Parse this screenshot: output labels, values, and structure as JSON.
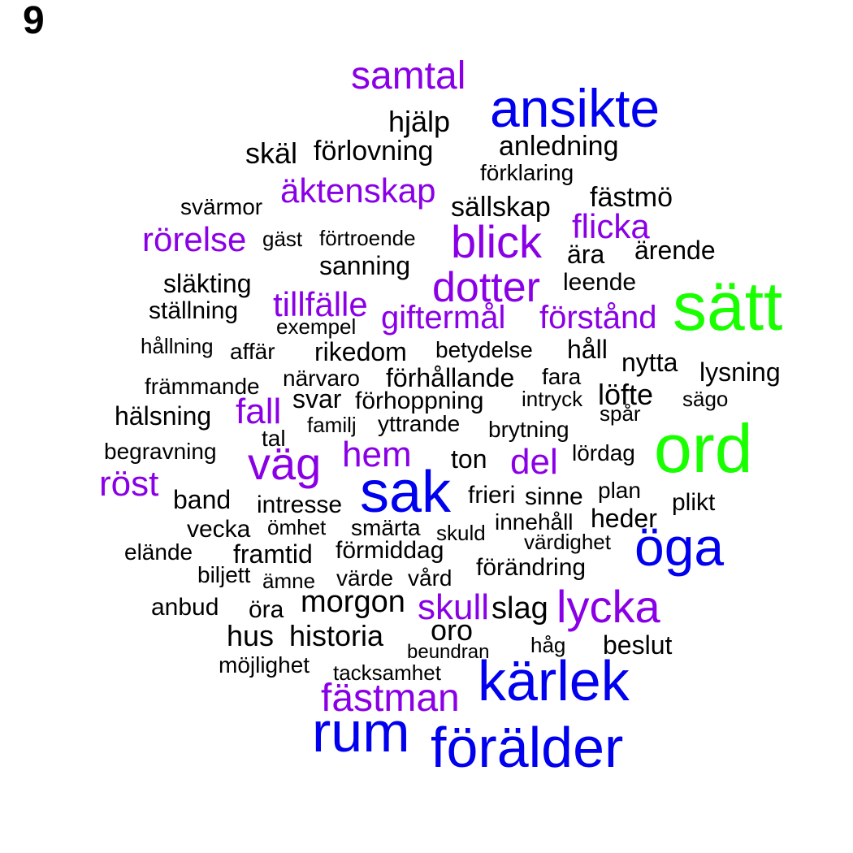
{
  "panel_label": "9",
  "colors": {
    "green": "#19ff00",
    "blue": "#0000ee",
    "purple": "#8a00e6",
    "black": "#000000"
  },
  "words": [
    {
      "text": "sätt",
      "color": "green"
    },
    {
      "text": "ord",
      "color": "green"
    },
    {
      "text": "ansikte",
      "color": "blue"
    },
    {
      "text": "sak",
      "color": "blue"
    },
    {
      "text": "öga",
      "color": "blue"
    },
    {
      "text": "kärlek",
      "color": "blue"
    },
    {
      "text": "rum",
      "color": "blue"
    },
    {
      "text": "förälder",
      "color": "blue"
    },
    {
      "text": "samtal",
      "color": "purple"
    },
    {
      "text": "äktenskap",
      "color": "purple"
    },
    {
      "text": "flicka",
      "color": "purple"
    },
    {
      "text": "rörelse",
      "color": "purple"
    },
    {
      "text": "blick",
      "color": "purple"
    },
    {
      "text": "dotter",
      "color": "purple"
    },
    {
      "text": "tillfälle",
      "color": "purple"
    },
    {
      "text": "giftermål",
      "color": "purple"
    },
    {
      "text": "förstånd",
      "color": "purple"
    },
    {
      "text": "fall",
      "color": "purple"
    },
    {
      "text": "väg",
      "color": "purple"
    },
    {
      "text": "hem",
      "color": "purple"
    },
    {
      "text": "del",
      "color": "purple"
    },
    {
      "text": "röst",
      "color": "purple"
    },
    {
      "text": "skull",
      "color": "purple"
    },
    {
      "text": "lycka",
      "color": "purple"
    },
    {
      "text": "fästman",
      "color": "purple"
    },
    {
      "text": "hjälp",
      "color": "black"
    },
    {
      "text": "skäl",
      "color": "black"
    },
    {
      "text": "förlovning",
      "color": "black"
    },
    {
      "text": "anledning",
      "color": "black"
    },
    {
      "text": "förklaring",
      "color": "black"
    },
    {
      "text": "fästmö",
      "color": "black"
    },
    {
      "text": "svärmor",
      "color": "black"
    },
    {
      "text": "sällskap",
      "color": "black"
    },
    {
      "text": "gäst",
      "color": "black"
    },
    {
      "text": "förtroende",
      "color": "black"
    },
    {
      "text": "ära",
      "color": "black"
    },
    {
      "text": "ärende",
      "color": "black"
    },
    {
      "text": "sanning",
      "color": "black"
    },
    {
      "text": "släkting",
      "color": "black"
    },
    {
      "text": "leende",
      "color": "black"
    },
    {
      "text": "ställning",
      "color": "black"
    },
    {
      "text": "exempel",
      "color": "black"
    },
    {
      "text": "hållning",
      "color": "black"
    },
    {
      "text": "affär",
      "color": "black"
    },
    {
      "text": "rikedom",
      "color": "black"
    },
    {
      "text": "betydelse",
      "color": "black"
    },
    {
      "text": "håll",
      "color": "black"
    },
    {
      "text": "nytta",
      "color": "black"
    },
    {
      "text": "lysning",
      "color": "black"
    },
    {
      "text": "främmande",
      "color": "black"
    },
    {
      "text": "närvaro",
      "color": "black"
    },
    {
      "text": "förhållande",
      "color": "black"
    },
    {
      "text": "fara",
      "color": "black"
    },
    {
      "text": "svar",
      "color": "black"
    },
    {
      "text": "förhoppning",
      "color": "black"
    },
    {
      "text": "intryck",
      "color": "black"
    },
    {
      "text": "löfte",
      "color": "black"
    },
    {
      "text": "sägo",
      "color": "black"
    },
    {
      "text": "hälsning",
      "color": "black"
    },
    {
      "text": "familj",
      "color": "black"
    },
    {
      "text": "yttrande",
      "color": "black"
    },
    {
      "text": "spår",
      "color": "black"
    },
    {
      "text": "tal",
      "color": "black"
    },
    {
      "text": "brytning",
      "color": "black"
    },
    {
      "text": "begravning",
      "color": "black"
    },
    {
      "text": "ton",
      "color": "black"
    },
    {
      "text": "lördag",
      "color": "black"
    },
    {
      "text": "band",
      "color": "black"
    },
    {
      "text": "intresse",
      "color": "black"
    },
    {
      "text": "frieri",
      "color": "black"
    },
    {
      "text": "sinne",
      "color": "black"
    },
    {
      "text": "plan",
      "color": "black"
    },
    {
      "text": "plikt",
      "color": "black"
    },
    {
      "text": "vecka",
      "color": "black"
    },
    {
      "text": "ömhet",
      "color": "black"
    },
    {
      "text": "smärta",
      "color": "black"
    },
    {
      "text": "skuld",
      "color": "black"
    },
    {
      "text": "innehåll",
      "color": "black"
    },
    {
      "text": "heder",
      "color": "black"
    },
    {
      "text": "elände",
      "color": "black"
    },
    {
      "text": "framtid",
      "color": "black"
    },
    {
      "text": "förmiddag",
      "color": "black"
    },
    {
      "text": "värdighet",
      "color": "black"
    },
    {
      "text": "biljett",
      "color": "black"
    },
    {
      "text": "ämne",
      "color": "black"
    },
    {
      "text": "värde",
      "color": "black"
    },
    {
      "text": "vård",
      "color": "black"
    },
    {
      "text": "förändring",
      "color": "black"
    },
    {
      "text": "anbud",
      "color": "black"
    },
    {
      "text": "öra",
      "color": "black"
    },
    {
      "text": "morgon",
      "color": "black"
    },
    {
      "text": "slag",
      "color": "black"
    },
    {
      "text": "oro",
      "color": "black"
    },
    {
      "text": "hus",
      "color": "black"
    },
    {
      "text": "historia",
      "color": "black"
    },
    {
      "text": "beundran",
      "color": "black"
    },
    {
      "text": "håg",
      "color": "black"
    },
    {
      "text": "beslut",
      "color": "black"
    },
    {
      "text": "möjlighet",
      "color": "black"
    },
    {
      "text": "tacksamhet",
      "color": "black"
    }
  ]
}
